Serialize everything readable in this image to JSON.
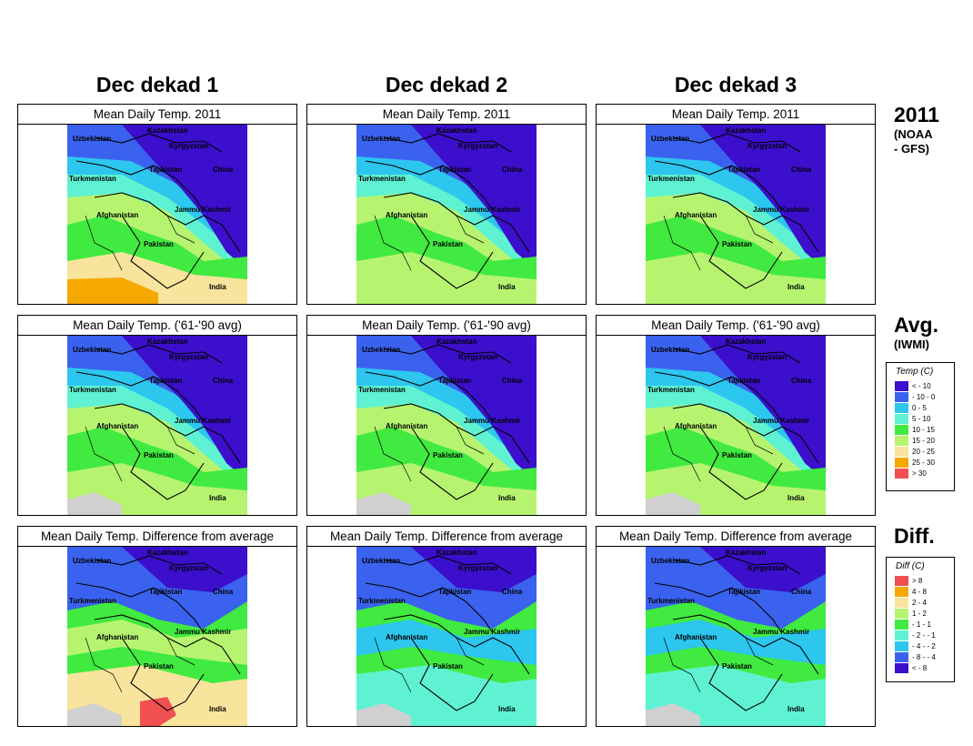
{
  "columns": [
    "Dec dekad 1",
    "Dec dekad 2",
    "Dec dekad 3"
  ],
  "rows": [
    {
      "panel_title": "Mean Daily Temp. 2011",
      "label": "2011",
      "sublabel": [
        "(NOAA",
        "- GFS)"
      ]
    },
    {
      "panel_title": "Mean Daily Temp. ('61-'90 avg)",
      "label": "Avg.",
      "sublabel": [
        "(IWMI)"
      ]
    },
    {
      "panel_title": "Mean Daily Temp. Difference from average",
      "label": "Diff.",
      "sublabel": []
    }
  ],
  "map_labels": [
    "Kazakhstan",
    "Uzbekistan",
    "Kyrgyzstan",
    "Tajikistan",
    "China",
    "Turkmenistan",
    "Afghanistan",
    "Jammu Kashmir",
    "Pakistan",
    "India"
  ],
  "temp_legend": {
    "title": "Temp (C)",
    "items": [
      {
        "label": "< - 10",
        "color": "#3b0fcc"
      },
      {
        "label": "- 10 -  0",
        "color": "#3a62ee"
      },
      {
        "label": "0 -  5",
        "color": "#2cc6ee"
      },
      {
        "label": "5 - 10",
        "color": "#5ef2d2"
      },
      {
        "label": "10 - 15",
        "color": "#40ea40"
      },
      {
        "label": "15 - 20",
        "color": "#b6f470"
      },
      {
        "label": "20 - 25",
        "color": "#f8e49c"
      },
      {
        "label": "25 - 30",
        "color": "#f5a800"
      },
      {
        "label": "> 30",
        "color": "#f05050"
      }
    ]
  },
  "diff_legend": {
    "title": "Diff (C)",
    "items": [
      {
        "label": "> 8",
        "color": "#f05050"
      },
      {
        "label": "4 -  8",
        "color": "#f5a800"
      },
      {
        "label": "2 -  4",
        "color": "#f8e49c"
      },
      {
        "label": "1 -  2",
        "color": "#b6f470"
      },
      {
        "label": "- 1 -  1",
        "color": "#40ea40"
      },
      {
        "label": "- 2 - - 1",
        "color": "#5ef2d2"
      },
      {
        "label": "- 4 - - 2",
        "color": "#2cc6ee"
      },
      {
        "label": "- 8 - - 4",
        "color": "#3a62ee"
      },
      {
        "label": "< - 8",
        "color": "#3b0fcc"
      }
    ]
  }
}
